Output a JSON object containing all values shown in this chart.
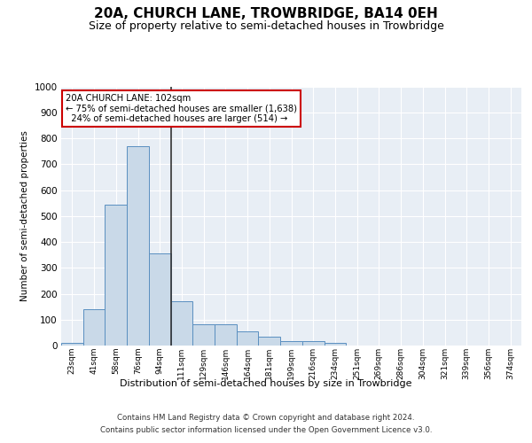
{
  "title": "20A, CHURCH LANE, TROWBRIDGE, BA14 0EH",
  "subtitle": "Size of property relative to semi-detached houses in Trowbridge",
  "xlabel": "Distribution of semi-detached houses by size in Trowbridge",
  "ylabel": "Number of semi-detached properties",
  "bin_labels": [
    "23sqm",
    "41sqm",
    "58sqm",
    "76sqm",
    "94sqm",
    "111sqm",
    "129sqm",
    "146sqm",
    "164sqm",
    "181sqm",
    "199sqm",
    "216sqm",
    "234sqm",
    "251sqm",
    "269sqm",
    "286sqm",
    "304sqm",
    "321sqm",
    "339sqm",
    "356sqm",
    "374sqm"
  ],
  "bar_values": [
    10,
    140,
    545,
    770,
    355,
    170,
    82,
    82,
    55,
    35,
    18,
    18,
    10,
    0,
    0,
    0,
    0,
    0,
    0,
    0,
    0
  ],
  "bar_color": "#c9d9e8",
  "bar_edge_color": "#5a8fc0",
  "subject_bin_index": 4,
  "subject_value": 102,
  "pct_smaller": 75,
  "n_smaller": 1638,
  "pct_larger": 24,
  "n_larger": 514,
  "annotation_box_color": "#ffffff",
  "annotation_box_edge": "#cc0000",
  "vline_color": "#333333",
  "ylim": [
    0,
    1000
  ],
  "yticks": [
    0,
    100,
    200,
    300,
    400,
    500,
    600,
    700,
    800,
    900,
    1000
  ],
  "footer_line1": "Contains HM Land Registry data © Crown copyright and database right 2024.",
  "footer_line2": "Contains public sector information licensed under the Open Government Licence v3.0.",
  "bg_color": "#e8eef5",
  "grid_color": "#ffffff",
  "title_fontsize": 11,
  "subtitle_fontsize": 9
}
